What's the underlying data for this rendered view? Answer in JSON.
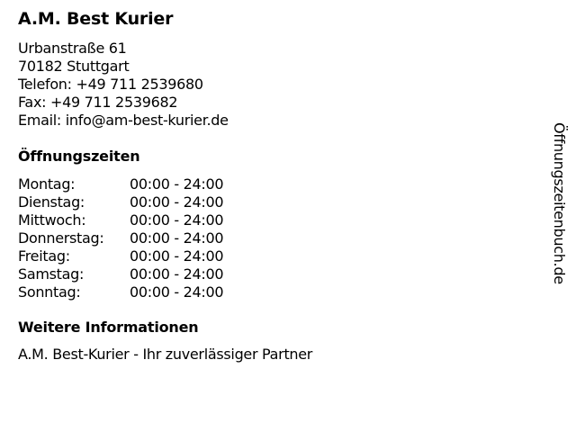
{
  "business": {
    "name": "A.M. Best Kurier",
    "street": "Urbanstraße 61",
    "city": "70182 Stuttgart",
    "phone": "Telefon: +49 711 2539680",
    "fax": "Fax: +49 711 2539682",
    "email": "Email: info@am-best-kurier.de"
  },
  "hours": {
    "heading": "Öffnungszeiten",
    "rows": [
      {
        "day": "Montag:",
        "time": "00:00 - 24:00"
      },
      {
        "day": "Dienstag:",
        "time": "00:00 - 24:00"
      },
      {
        "day": "Mittwoch:",
        "time": "00:00 - 24:00"
      },
      {
        "day": "Donnerstag:",
        "time": "00:00 - 24:00"
      },
      {
        "day": "Freitag:",
        "time": "00:00 - 24:00"
      },
      {
        "day": "Samstag:",
        "time": "00:00 - 24:00"
      },
      {
        "day": "Sonntag:",
        "time": "00:00 - 24:00"
      }
    ]
  },
  "more": {
    "heading": "Weitere Informationen",
    "text": "A.M. Best-Kurier - Ihr zuverlässiger Partner"
  },
  "watermark": "Öffnungszeitenbuch.de"
}
